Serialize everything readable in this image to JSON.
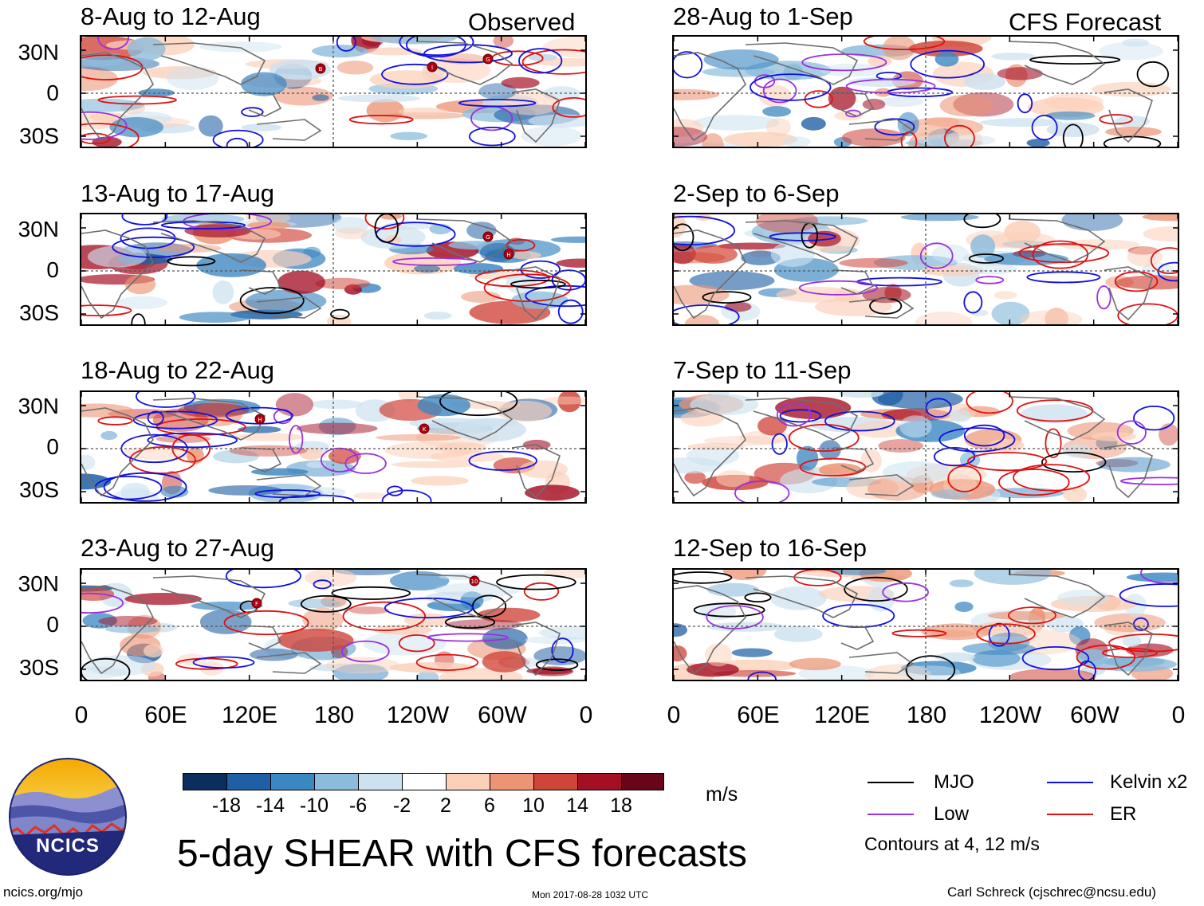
{
  "observed_label": "Observed",
  "forecast_label": "CFS Forecast",
  "panels_left": [
    {
      "title": "8-Aug to 12-Aug"
    },
    {
      "title": "13-Aug to 17-Aug"
    },
    {
      "title": "18-Aug to 22-Aug"
    },
    {
      "title": "23-Aug to 27-Aug"
    }
  ],
  "panels_right": [
    {
      "title": "28-Aug to 1-Sep"
    },
    {
      "title": "2-Sep to 6-Sep"
    },
    {
      "title": "7-Sep to 11-Sep"
    },
    {
      "title": "12-Sep to 16-Sep"
    }
  ],
  "lat_labels": [
    "30N",
    "0",
    "30S"
  ],
  "lon_labels": [
    "0",
    "60E",
    "120E",
    "180",
    "120W",
    "60W",
    "0"
  ],
  "colorbar": {
    "labels": [
      "-18",
      "-14",
      "-10",
      "-6",
      "-2",
      "2",
      "6",
      "10",
      "14",
      "18"
    ],
    "colors": [
      "#0b2e5e",
      "#1f5fa5",
      "#3b87c2",
      "#8bbcdc",
      "#cde2f0",
      "#ffffff",
      "#fbd0b9",
      "#ec9474",
      "#d0453a",
      "#a50f24",
      "#6a0419"
    ],
    "units": "m/s"
  },
  "legend": {
    "items": [
      {
        "label": "MJO",
        "color": "#000000"
      },
      {
        "label": "Kelvin x2",
        "color": "#1010e0"
      },
      {
        "label": "Low",
        "color": "#9b30e0"
      },
      {
        "label": "ER",
        "color": "#e01010"
      }
    ],
    "contours_note": "Contours at 4, 12 m/s"
  },
  "main_title": "5-day SHEAR with CFS forecasts",
  "logo_text": "NCICS",
  "url": "ncics.org/mjo",
  "timestamp": "Mon 2017-08-28 1032 UTC",
  "author": "Carl Schreck (cjschrec@ncsu.edu)",
  "storm_markers": [
    "B",
    "I",
    "G",
    "G",
    "H",
    "H",
    "K",
    "F",
    "10"
  ]
}
